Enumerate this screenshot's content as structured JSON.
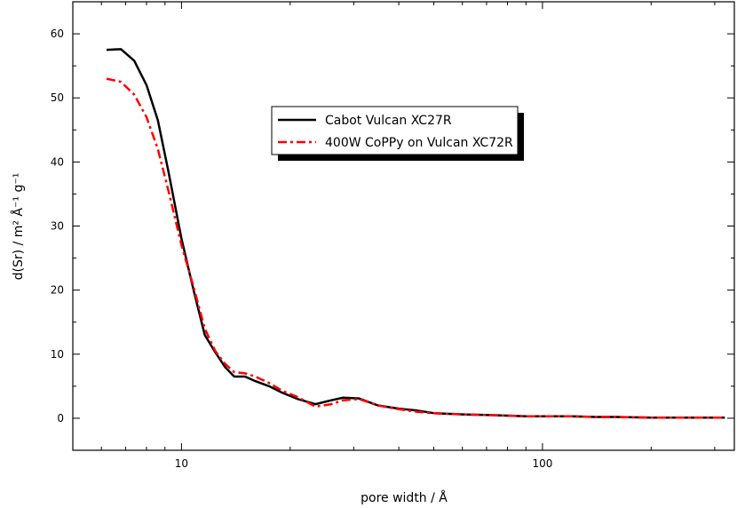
{
  "chart_data": {
    "type": "line",
    "title": "",
    "xlabel": "pore width / Å",
    "ylabel": "d(Sr) / m² Å⁻¹ g⁻¹",
    "x_scale": "log",
    "xlim": [
      5,
      340
    ],
    "ylim": [
      -5,
      65
    ],
    "x_ticks": [
      10,
      100
    ],
    "y_ticks": [
      0,
      10,
      20,
      30,
      40,
      50,
      60
    ],
    "grid": false,
    "legend_position": "top-center",
    "series": [
      {
        "name": "Cabot Vulcan XC27R",
        "color": "#000000",
        "style": "solid",
        "x": [
          6.2,
          6.8,
          7.4,
          8.0,
          8.6,
          9.2,
          10.0,
          10.8,
          11.6,
          12.4,
          13.2,
          14.0,
          15.0,
          16.0,
          17.5,
          19.0,
          21.0,
          23.5,
          26.0,
          28.0,
          31.0,
          35.0,
          40.0,
          45.0,
          50.0,
          60.0,
          70.0,
          80.0,
          90.0,
          100.0,
          120.0,
          140.0,
          160.0,
          200.0,
          250.0,
          300.0,
          320.0
        ],
        "y": [
          57.5,
          57.6,
          55.8,
          52.0,
          46.5,
          38.5,
          28.0,
          20.0,
          13.0,
          10.3,
          8.0,
          6.5,
          6.5,
          5.8,
          5.0,
          4.0,
          3.0,
          2.2,
          2.8,
          3.2,
          3.1,
          2.0,
          1.5,
          1.2,
          0.8,
          0.6,
          0.5,
          0.4,
          0.3,
          0.3,
          0.3,
          0.2,
          0.2,
          0.1,
          0.1,
          0.1,
          0.1
        ]
      },
      {
        "name": "400W CoPPy on Vulcan XC72R",
        "color": "#ff0000",
        "style": "dash-dot",
        "x": [
          6.2,
          6.8,
          7.4,
          8.0,
          8.6,
          9.2,
          10.0,
          10.8,
          11.6,
          12.4,
          13.2,
          14.0,
          15.0,
          16.0,
          17.5,
          19.0,
          21.0,
          23.5,
          26.0,
          28.0,
          31.0,
          35.0,
          40.0,
          45.0,
          50.0,
          60.0,
          70.0,
          80.0,
          90.0,
          100.0,
          120.0,
          140.0,
          160.0,
          200.0,
          250.0,
          300.0,
          320.0
        ],
        "y": [
          53.0,
          52.5,
          50.5,
          47.0,
          42.0,
          35.5,
          27.0,
          20.5,
          14.0,
          10.5,
          8.5,
          7.2,
          7.0,
          6.5,
          5.5,
          4.3,
          3.3,
          1.8,
          2.2,
          2.8,
          3.0,
          2.0,
          1.4,
          1.0,
          0.8,
          0.6,
          0.5,
          0.4,
          0.3,
          0.3,
          0.3,
          0.2,
          0.2,
          0.1,
          0.1,
          0.1,
          0.1
        ]
      }
    ]
  }
}
